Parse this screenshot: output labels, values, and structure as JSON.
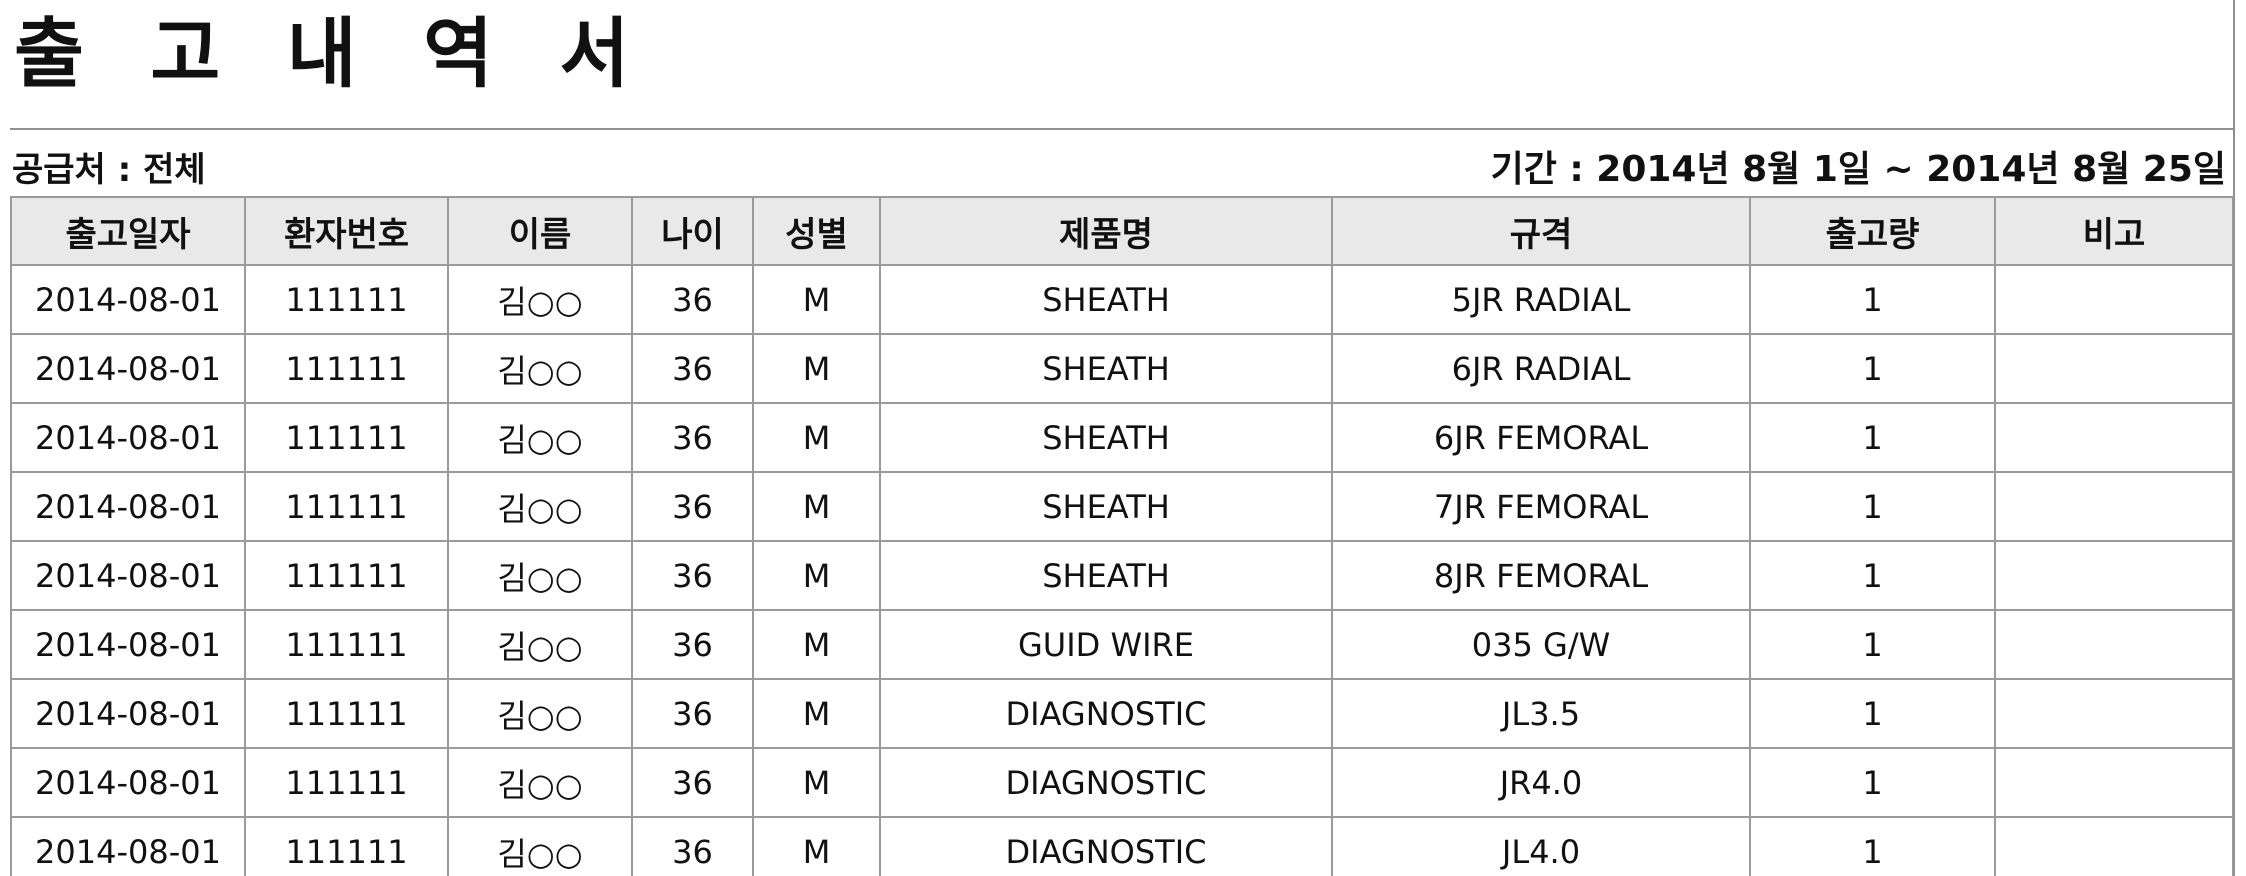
{
  "document": {
    "title": "출 고 내 역 서",
    "supplier": "공급처 : 전체",
    "period": "기간 : 2014년 8월 1일 ~ 2014년 8월 25일"
  },
  "table": {
    "headers": [
      "출고일자",
      "환자번호",
      "이름",
      "나이",
      "성별",
      "제품명",
      "규격",
      "출고량",
      "비고"
    ],
    "rows": [
      [
        "2014-08-01",
        "111111",
        "김○○",
        "36",
        "M",
        "SHEATH",
        "5JR RADIAL",
        "1",
        ""
      ],
      [
        "2014-08-01",
        "111111",
        "김○○",
        "36",
        "M",
        "SHEATH",
        "6JR RADIAL",
        "1",
        ""
      ],
      [
        "2014-08-01",
        "111111",
        "김○○",
        "36",
        "M",
        "SHEATH",
        "6JR FEMORAL",
        "1",
        ""
      ],
      [
        "2014-08-01",
        "111111",
        "김○○",
        "36",
        "M",
        "SHEATH",
        "7JR FEMORAL",
        "1",
        ""
      ],
      [
        "2014-08-01",
        "111111",
        "김○○",
        "36",
        "M",
        "SHEATH",
        "8JR FEMORAL",
        "1",
        ""
      ],
      [
        "2014-08-01",
        "111111",
        "김○○",
        "36",
        "M",
        "GUID WIRE",
        "035 G/W",
        "1",
        ""
      ],
      [
        "2014-08-01",
        "111111",
        "김○○",
        "36",
        "M",
        "DIAGNOSTIC",
        "JL3.5",
        "1",
        ""
      ],
      [
        "2014-08-01",
        "111111",
        "김○○",
        "36",
        "M",
        "DIAGNOSTIC",
        "JR4.0",
        "1",
        ""
      ],
      [
        "2014-08-01",
        "111111",
        "김○○",
        "36",
        "M",
        "DIAGNOSTIC",
        "JL4.0",
        "1",
        ""
      ]
    ]
  },
  "colors": {
    "header_background": "#e9e9e9",
    "border": "#9a9a9a",
    "text": "#111111"
  }
}
